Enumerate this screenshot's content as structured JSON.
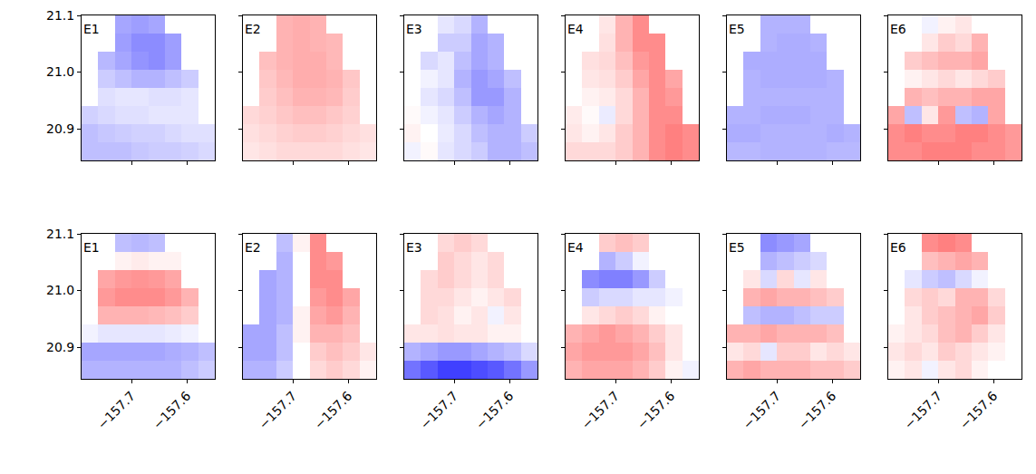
{
  "chart_data": {
    "type": "heatmap",
    "x": [
      -157.775,
      -157.745,
      -157.715,
      -157.685,
      -157.655,
      -157.625,
      -157.595,
      -157.565
    ],
    "y": [
      20.86,
      20.892,
      20.924,
      20.956,
      20.988,
      21.02,
      21.052,
      21.084
    ],
    "xlim": [
      -157.79,
      -157.55
    ],
    "ylim": [
      20.844,
      21.1
    ],
    "xticks": [
      {
        "value": -157.7,
        "label": "−157.7"
      },
      {
        "value": -157.6,
        "label": "−157.6"
      }
    ],
    "yticks": [
      20.9,
      {
        "value": 21,
        "label": "21.0"
      },
      21.1
    ],
    "zlim": [
      -1,
      1
    ],
    "grid": false,
    "panels": [
      {
        "label": "E1",
        "z": [
          [
            -0.25,
            -0.25,
            -0.25,
            -0.22,
            -0.2,
            -0.2,
            -0.18,
            -0.15
          ],
          [
            -0.25,
            -0.22,
            -0.2,
            -0.18,
            -0.18,
            -0.15,
            -0.12,
            -0.12
          ],
          [
            -0.18,
            -0.15,
            -0.12,
            -0.12,
            -0.1,
            -0.1,
            -0.1,
            null
          ],
          [
            null,
            -0.12,
            -0.1,
            -0.1,
            -0.12,
            -0.12,
            -0.1,
            null
          ],
          [
            null,
            -0.2,
            -0.25,
            -0.3,
            -0.3,
            -0.25,
            -0.2,
            null
          ],
          [
            null,
            -0.28,
            -0.35,
            -0.42,
            -0.45,
            -0.38,
            null,
            null
          ],
          [
            null,
            null,
            -0.38,
            -0.45,
            -0.45,
            -0.38,
            null,
            null
          ],
          [
            null,
            null,
            -0.35,
            -0.38,
            -0.35,
            null,
            null,
            null
          ]
        ]
      },
      {
        "label": "E2",
        "z": [
          [
            0.1,
            0.12,
            0.15,
            0.15,
            0.15,
            0.15,
            0.12,
            0.1
          ],
          [
            0.12,
            0.15,
            0.18,
            0.2,
            0.2,
            0.18,
            0.15,
            0.12
          ],
          [
            0.15,
            0.18,
            0.22,
            0.25,
            0.25,
            0.22,
            0.18,
            null
          ],
          [
            null,
            0.2,
            0.25,
            0.3,
            0.3,
            0.28,
            0.2,
            null
          ],
          [
            null,
            0.22,
            0.28,
            0.32,
            0.32,
            0.3,
            0.22,
            null
          ],
          [
            null,
            0.25,
            0.3,
            0.32,
            0.32,
            0.28,
            null,
            null
          ],
          [
            null,
            null,
            0.3,
            0.32,
            0.3,
            0.28,
            null,
            null
          ],
          [
            null,
            null,
            0.3,
            0.32,
            0.3,
            null,
            null,
            null
          ]
        ]
      },
      {
        "label": "E3",
        "z": [
          [
            -0.05,
            0.02,
            -0.1,
            -0.15,
            -0.2,
            -0.3,
            -0.3,
            -0.25
          ],
          [
            0.05,
            0.0,
            -0.08,
            -0.15,
            -0.25,
            -0.3,
            -0.3,
            -0.2
          ],
          [
            0.02,
            -0.05,
            -0.1,
            -0.2,
            -0.3,
            -0.35,
            -0.3,
            null
          ],
          [
            null,
            -0.1,
            -0.15,
            -0.25,
            -0.4,
            -0.4,
            -0.3,
            null
          ],
          [
            null,
            -0.05,
            -0.1,
            -0.3,
            -0.4,
            -0.35,
            -0.25,
            null
          ],
          [
            null,
            -0.15,
            -0.1,
            -0.25,
            -0.35,
            -0.3,
            null,
            null
          ],
          [
            null,
            null,
            -0.2,
            -0.2,
            -0.35,
            -0.3,
            null,
            null
          ],
          [
            null,
            null,
            -0.1,
            -0.15,
            -0.3,
            null,
            null,
            null
          ]
        ]
      },
      {
        "label": "E4",
        "z": [
          [
            0.15,
            0.15,
            0.15,
            0.2,
            0.3,
            0.45,
            0.5,
            0.45
          ],
          [
            0.1,
            0.05,
            0.1,
            0.2,
            0.3,
            0.45,
            0.5,
            0.45
          ],
          [
            0.08,
            0.02,
            -0.08,
            0.15,
            0.3,
            0.45,
            0.45,
            null
          ],
          [
            null,
            0.05,
            0.08,
            0.15,
            0.3,
            0.45,
            0.4,
            null
          ],
          [
            null,
            0.1,
            0.12,
            0.2,
            0.35,
            0.45,
            0.35,
            null
          ],
          [
            null,
            0.12,
            0.15,
            0.25,
            0.4,
            0.45,
            null,
            null
          ],
          [
            null,
            null,
            0.12,
            0.3,
            0.45,
            0.45,
            null,
            null
          ],
          [
            null,
            null,
            0.1,
            0.3,
            0.45,
            null,
            null,
            null
          ]
        ]
      },
      {
        "label": "E5",
        "z": [
          [
            -0.28,
            -0.28,
            -0.3,
            -0.3,
            -0.3,
            -0.3,
            -0.28,
            -0.28
          ],
          [
            -0.32,
            -0.32,
            -0.3,
            -0.3,
            -0.3,
            -0.3,
            -0.32,
            -0.3
          ],
          [
            -0.3,
            -0.3,
            -0.32,
            -0.32,
            -0.32,
            -0.3,
            -0.3,
            null
          ],
          [
            null,
            -0.3,
            -0.3,
            -0.3,
            -0.3,
            -0.3,
            -0.3,
            null
          ],
          [
            null,
            -0.3,
            -0.32,
            -0.32,
            -0.32,
            -0.32,
            -0.3,
            null
          ],
          [
            null,
            -0.32,
            -0.32,
            -0.32,
            -0.32,
            -0.32,
            null,
            null
          ],
          [
            null,
            null,
            -0.3,
            -0.32,
            -0.32,
            -0.3,
            null,
            null
          ],
          [
            null,
            null,
            -0.3,
            -0.3,
            -0.3,
            null,
            null,
            null
          ]
        ]
      },
      {
        "label": "E6",
        "z": [
          [
            0.45,
            0.45,
            0.5,
            0.5,
            0.5,
            0.45,
            0.45,
            0.4
          ],
          [
            0.45,
            0.5,
            0.45,
            0.45,
            0.5,
            0.5,
            0.45,
            0.4
          ],
          [
            0.35,
            -0.25,
            0.1,
            0.4,
            -0.25,
            -0.3,
            0.35,
            null
          ],
          [
            null,
            0.3,
            0.25,
            0.3,
            0.3,
            0.35,
            0.35,
            null
          ],
          [
            null,
            0.05,
            0.1,
            0.15,
            0.1,
            0.15,
            0.2,
            null
          ],
          [
            null,
            0.2,
            0.25,
            0.3,
            0.3,
            0.35,
            null,
            null
          ],
          [
            null,
            null,
            0.1,
            0.2,
            0.15,
            0.3,
            null,
            null
          ],
          [
            null,
            null,
            -0.05,
            0.05,
            0.1,
            null,
            null,
            null
          ]
        ]
      },
      {
        "label": "E1",
        "z": [
          [
            -0.3,
            -0.3,
            -0.3,
            -0.3,
            -0.3,
            -0.3,
            -0.25,
            -0.2
          ],
          [
            -0.35,
            -0.35,
            -0.35,
            -0.35,
            -0.35,
            -0.32,
            -0.3,
            -0.25
          ],
          [
            -0.05,
            -0.1,
            -0.1,
            -0.1,
            -0.1,
            -0.08,
            -0.05,
            null
          ],
          [
            null,
            0.3,
            0.3,
            0.3,
            0.28,
            0.25,
            0.2,
            null
          ],
          [
            null,
            0.4,
            0.45,
            0.45,
            0.45,
            0.4,
            0.3,
            null
          ],
          [
            null,
            0.35,
            0.4,
            0.42,
            0.4,
            0.35,
            null,
            null
          ],
          [
            null,
            null,
            0.05,
            0.08,
            0.05,
            0.05,
            null,
            null
          ],
          [
            null,
            null,
            -0.25,
            -0.28,
            -0.25,
            null,
            null,
            null
          ]
        ]
      },
      {
        "label": "E2",
        "z": [
          [
            -0.3,
            -0.3,
            -0.2,
            0.0,
            0.15,
            0.2,
            0.15,
            0.05
          ],
          [
            -0.35,
            -0.35,
            -0.25,
            0.0,
            0.2,
            0.25,
            0.2,
            0.1
          ],
          [
            -0.35,
            -0.35,
            -0.25,
            0.05,
            0.3,
            0.3,
            0.25,
            null
          ],
          [
            null,
            -0.35,
            -0.3,
            0.05,
            0.35,
            0.4,
            0.3,
            null
          ],
          [
            null,
            -0.35,
            -0.3,
            0.0,
            0.4,
            0.45,
            0.35,
            null
          ],
          [
            null,
            -0.35,
            -0.3,
            0.0,
            0.45,
            0.45,
            null,
            null
          ],
          [
            null,
            null,
            -0.3,
            0.0,
            0.45,
            0.4,
            null,
            null
          ],
          [
            null,
            null,
            -0.25,
            0.05,
            0.45,
            null,
            null,
            null
          ]
        ]
      },
      {
        "label": "E3",
        "z": [
          [
            -0.55,
            -0.65,
            -0.75,
            -0.75,
            -0.7,
            -0.65,
            -0.55,
            -0.4
          ],
          [
            -0.3,
            -0.35,
            -0.4,
            -0.4,
            -0.35,
            -0.3,
            -0.25,
            -0.15
          ],
          [
            0.1,
            0.1,
            0.12,
            0.1,
            0.1,
            0.05,
            0.05,
            null
          ],
          [
            null,
            0.15,
            0.12,
            0.05,
            0.1,
            -0.05,
            0.1,
            null
          ],
          [
            null,
            0.15,
            0.15,
            0.1,
            0.05,
            0.1,
            0.15,
            null
          ],
          [
            null,
            0.15,
            0.2,
            0.15,
            0.1,
            0.15,
            null,
            null
          ],
          [
            null,
            null,
            0.2,
            0.15,
            0.1,
            0.15,
            null,
            null
          ],
          [
            null,
            null,
            0.15,
            0.2,
            0.15,
            null,
            null,
            null
          ]
        ]
      },
      {
        "label": "E4",
        "z": [
          [
            0.3,
            0.35,
            0.35,
            0.35,
            0.3,
            0.2,
            0.05,
            -0.05
          ],
          [
            0.35,
            0.4,
            0.4,
            0.4,
            0.35,
            0.25,
            0.1,
            0.0
          ],
          [
            0.3,
            0.35,
            0.4,
            0.35,
            0.3,
            0.2,
            0.1,
            null
          ],
          [
            null,
            0.1,
            0.15,
            0.2,
            0.15,
            0.05,
            0.0,
            null
          ],
          [
            null,
            -0.2,
            -0.15,
            -0.15,
            -0.1,
            -0.1,
            -0.05,
            null
          ],
          [
            null,
            -0.45,
            -0.5,
            -0.5,
            -0.4,
            -0.2,
            null,
            null
          ],
          [
            null,
            null,
            -0.3,
            -0.2,
            -0.05,
            0.0,
            null,
            null
          ],
          [
            null,
            null,
            0.2,
            0.25,
            0.2,
            null,
            null,
            null
          ]
        ]
      },
      {
        "label": "E5",
        "z": [
          [
            0.3,
            0.35,
            0.3,
            0.3,
            0.3,
            0.25,
            0.25,
            0.2
          ],
          [
            0.1,
            0.15,
            -0.1,
            0.2,
            0.2,
            0.1,
            0.15,
            0.1
          ],
          [
            0.3,
            0.3,
            0.35,
            0.3,
            0.3,
            0.3,
            0.25,
            null
          ],
          [
            null,
            -0.25,
            -0.3,
            -0.3,
            -0.25,
            -0.2,
            -0.2,
            null
          ],
          [
            null,
            0.3,
            0.35,
            0.3,
            0.3,
            0.25,
            0.2,
            null
          ],
          [
            null,
            0.1,
            -0.15,
            0.15,
            -0.1,
            0.1,
            null,
            null
          ],
          [
            null,
            null,
            -0.3,
            -0.25,
            -0.2,
            -0.15,
            null,
            null
          ],
          [
            null,
            null,
            -0.45,
            -0.4,
            -0.35,
            null,
            null,
            null
          ]
        ]
      },
      {
        "label": "E6",
        "z": [
          [
            0.05,
            0.1,
            -0.05,
            0.1,
            0.15,
            0.05,
            0.0,
            0.0
          ],
          [
            0.1,
            0.15,
            0.1,
            0.2,
            0.15,
            0.1,
            0.05,
            0.0
          ],
          [
            0.05,
            0.1,
            0.15,
            0.25,
            0.3,
            0.2,
            0.1,
            null
          ],
          [
            null,
            0.1,
            0.2,
            0.25,
            0.3,
            0.35,
            0.2,
            null
          ],
          [
            null,
            0.15,
            0.2,
            0.15,
            0.3,
            0.3,
            0.15,
            null
          ],
          [
            null,
            -0.1,
            -0.2,
            -0.25,
            -0.15,
            -0.05,
            null,
            null
          ],
          [
            null,
            null,
            0.25,
            0.3,
            0.35,
            0.3,
            null,
            null
          ],
          [
            null,
            null,
            0.45,
            0.5,
            0.45,
            null,
            null,
            null
          ]
        ]
      }
    ]
  }
}
